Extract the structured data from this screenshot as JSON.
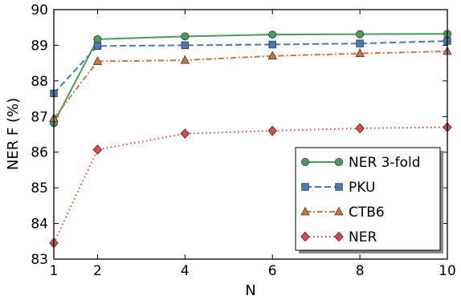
{
  "chart_data": {
    "type": "line",
    "title": "",
    "xlabel": "N",
    "ylabel": "NER F (%)",
    "xlim": [
      1,
      10
    ],
    "ylim": [
      83,
      90
    ],
    "xticks": [
      1,
      2,
      4,
      6,
      8,
      10
    ],
    "yticks": [
      83,
      84,
      85,
      86,
      87,
      88,
      89,
      90
    ],
    "grid": false,
    "legend_position": "lower-right",
    "series": [
      {
        "name": "NER 3-fold",
        "x": [
          1,
          2,
          4,
          6,
          8,
          10
        ],
        "values": [
          86.82,
          89.17,
          89.25,
          89.3,
          89.31,
          89.32
        ],
        "color": "#4c9a5c",
        "marker": "circle",
        "line_style": "solid"
      },
      {
        "name": "PKU",
        "x": [
          1,
          2,
          4,
          6,
          8,
          10
        ],
        "values": [
          87.65,
          88.98,
          89.0,
          89.02,
          89.05,
          89.12
        ],
        "color": "#4a7ab5",
        "marker": "square",
        "line_style": "dashed"
      },
      {
        "name": "CTB6",
        "x": [
          1,
          2,
          4,
          6,
          8,
          10
        ],
        "values": [
          86.95,
          88.55,
          88.58,
          88.7,
          88.77,
          88.83
        ],
        "color": "#d2743c",
        "marker": "triangle",
        "line_style": "dashdot"
      },
      {
        "name": "NER",
        "x": [
          1,
          2,
          4,
          6,
          8,
          10
        ],
        "values": [
          83.45,
          86.07,
          86.52,
          86.6,
          86.67,
          86.7
        ],
        "color": "#e04848",
        "marker": "diamond",
        "line_style": "dotted"
      }
    ]
  }
}
